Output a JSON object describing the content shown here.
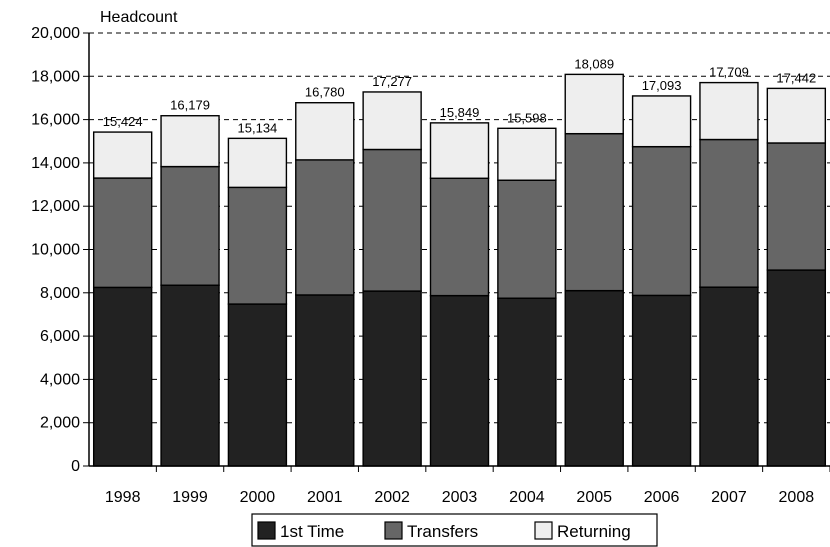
{
  "chart_data": {
    "type": "bar",
    "stacked": true,
    "ylabel": "Headcount",
    "ylim": [
      0,
      20000
    ],
    "yticks": [
      "0",
      "2,000",
      "4,000",
      "6,000",
      "8,000",
      "10,000",
      "12,000",
      "14,000",
      "16,000",
      "18,000",
      "20,000"
    ],
    "grid": "dashed horizontal",
    "legend_position": "bottom",
    "categories": [
      "1998",
      "1999",
      "2000",
      "2001",
      "2002",
      "2003",
      "2004",
      "2005",
      "2006",
      "2007",
      "2008"
    ],
    "series": [
      {
        "name": "1st Time",
        "color": "#222222",
        "values": [
          8250,
          8350,
          7480,
          7900,
          8080,
          7870,
          7750,
          8100,
          7880,
          8260,
          9050
        ]
      },
      {
        "name": "Transfers",
        "color": "#666666",
        "values": [
          5050,
          5480,
          5390,
          6240,
          6540,
          5420,
          5450,
          7250,
          6870,
          6820,
          5870
        ]
      },
      {
        "name": "Returning",
        "color": "#eeeeee",
        "values": [
          2124,
          2349,
          2264,
          2640,
          2657,
          2559,
          2398,
          2739,
          2343,
          2629,
          2522
        ]
      }
    ],
    "totals": [
      "15,424",
      "16,179",
      "15,134",
      "16,780",
      "17,277",
      "15,849",
      "15,598",
      "18,089",
      "17,093",
      "17,709",
      "17,442"
    ]
  }
}
